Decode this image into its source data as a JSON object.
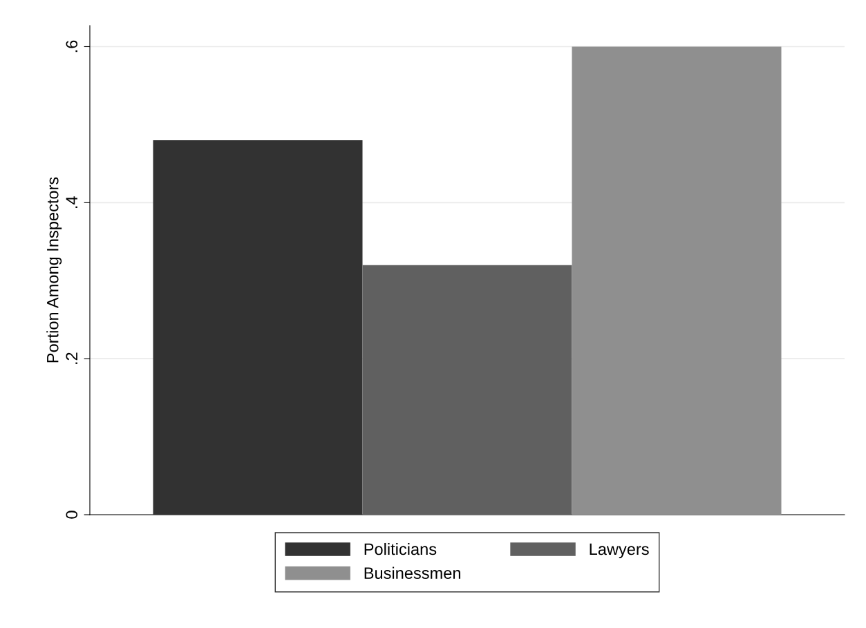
{
  "chart_data": {
    "type": "bar",
    "ylabel": "Portion Among Inspectors",
    "categories": [
      null
    ],
    "series": [
      {
        "name": "Politicians",
        "color": "#323232",
        "values": [
          0.48
        ]
      },
      {
        "name": "Lawyers",
        "color": "#606060",
        "values": [
          0.32
        ]
      },
      {
        "name": "Businessmen",
        "color": "#8f8f8f",
        "values": [
          0.6
        ]
      }
    ],
    "ylim": [
      0,
      0.627
    ],
    "yticks": [
      {
        "value": 0,
        "label": "0"
      },
      {
        "value": 0.2,
        "label": ".2"
      },
      {
        "value": 0.4,
        "label": ".4"
      },
      {
        "value": 0.6,
        "label": ".6"
      }
    ],
    "grid": "y",
    "legend": "bottom"
  }
}
